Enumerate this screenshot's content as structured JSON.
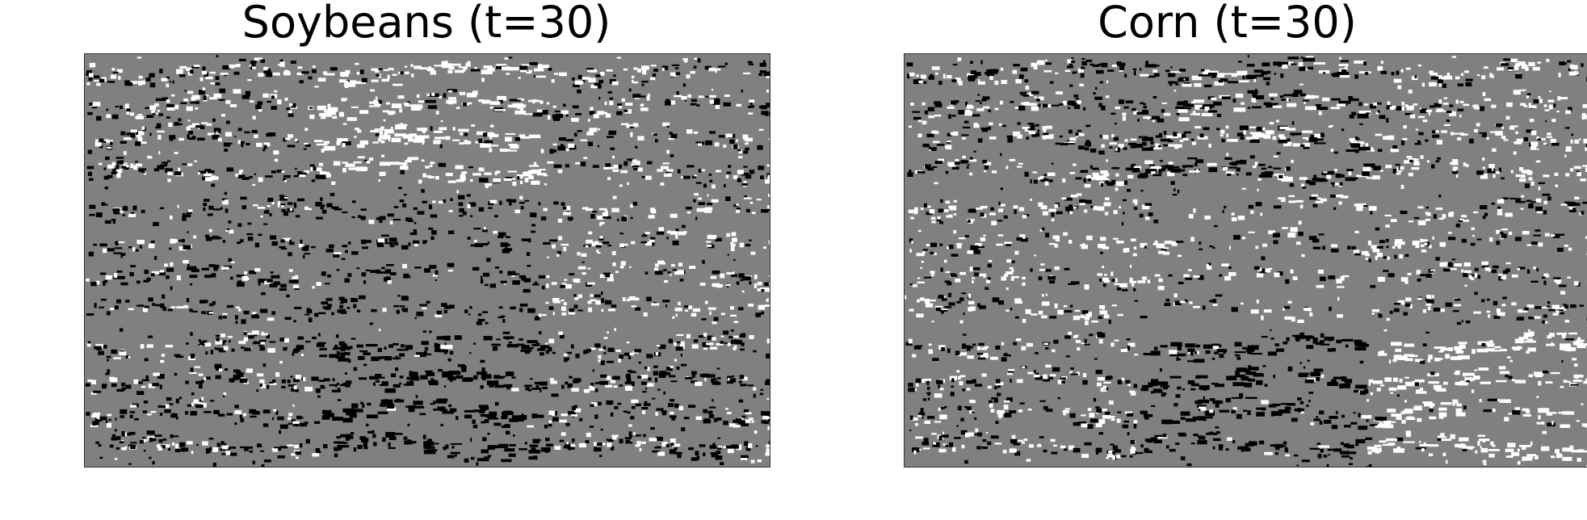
{
  "figure": {
    "panels": [
      {
        "title": "Soybeans (t=30)"
      },
      {
        "title": "Corn (t=30)"
      }
    ],
    "colors": {
      "background": "#ffffff",
      "base": "#808080",
      "dark": "#000000",
      "light": "#ffffff"
    }
  }
}
